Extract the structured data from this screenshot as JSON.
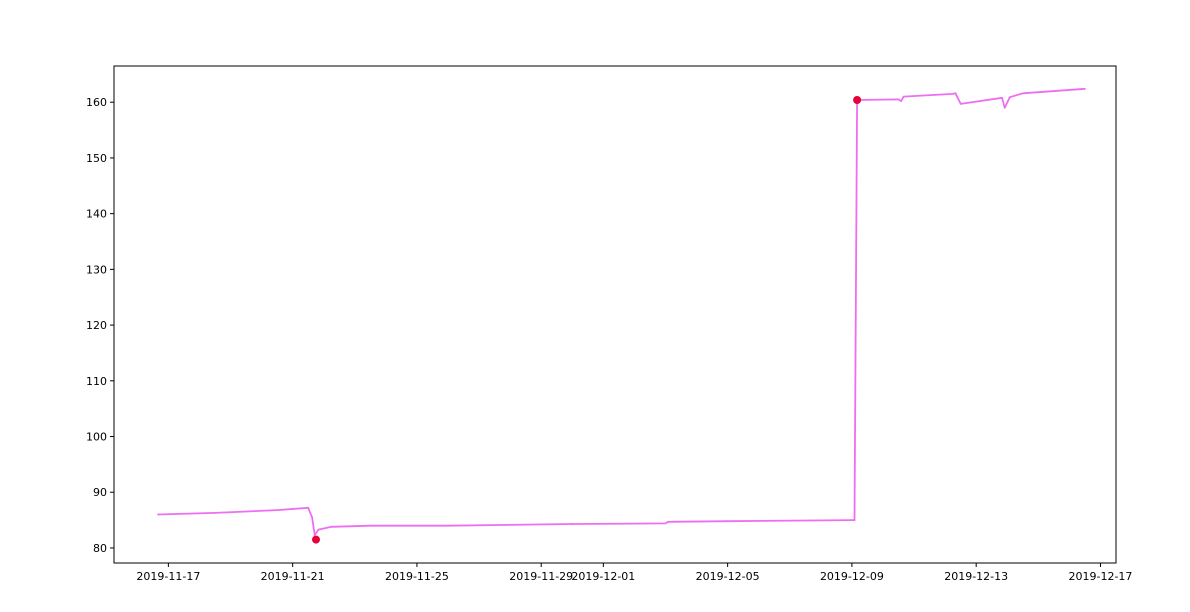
{
  "chart_data": {
    "type": "line",
    "title": "",
    "xlabel": "",
    "ylabel": "",
    "x_axis_kind": "date",
    "xlim": [
      "2019-11-15T06:00",
      "2019-12-17T12:00"
    ],
    "ylim": [
      77.3,
      166.5
    ],
    "x_ticks": [
      "2019-11-17",
      "2019-11-21",
      "2019-11-25",
      "2019-11-29",
      "2019-12-01",
      "2019-12-05",
      "2019-12-09",
      "2019-12-13",
      "2019-12-17"
    ],
    "y_ticks": [
      80,
      90,
      100,
      110,
      120,
      130,
      140,
      150,
      160
    ],
    "grid": false,
    "legend": "none",
    "series": [
      {
        "color": "#ee6ef2",
        "points": [
          {
            "x": "2019-11-16T16:00",
            "y": 86.0
          },
          {
            "x": "2019-11-18T12:00",
            "y": 86.3
          },
          {
            "x": "2019-11-20T12:00",
            "y": 86.8
          },
          {
            "x": "2019-11-21T12:00",
            "y": 87.2
          },
          {
            "x": "2019-11-21T15:00",
            "y": 85.5
          },
          {
            "x": "2019-11-21T17:00",
            "y": 82.3
          },
          {
            "x": "2019-11-21T20:00",
            "y": 83.3
          },
          {
            "x": "2019-11-22T06:00",
            "y": 83.8
          },
          {
            "x": "2019-11-23T12:00",
            "y": 84.0
          },
          {
            "x": "2019-11-26T00:00",
            "y": 84.0
          },
          {
            "x": "2019-11-30T00:00",
            "y": 84.3
          },
          {
            "x": "2019-12-03T00:00",
            "y": 84.4
          },
          {
            "x": "2019-12-03T02:00",
            "y": 84.7
          },
          {
            "x": "2019-12-05T00:00",
            "y": 84.8
          },
          {
            "x": "2019-12-09T00:00",
            "y": 85.0
          },
          {
            "x": "2019-12-09T02:00",
            "y": 85.0
          },
          {
            "x": "2019-12-09T04:00",
            "y": 160.4
          },
          {
            "x": "2019-12-10T12:00",
            "y": 160.5
          },
          {
            "x": "2019-12-10T14:00",
            "y": 160.2
          },
          {
            "x": "2019-12-10T16:00",
            "y": 161.0
          },
          {
            "x": "2019-12-12T06:00",
            "y": 161.5
          },
          {
            "x": "2019-12-12T08:00",
            "y": 161.6
          },
          {
            "x": "2019-12-12T12:00",
            "y": 159.7
          },
          {
            "x": "2019-12-13T20:00",
            "y": 160.8
          },
          {
            "x": "2019-12-13T22:00",
            "y": 159.0
          },
          {
            "x": "2019-12-14T02:00",
            "y": 160.9
          },
          {
            "x": "2019-12-14T12:00",
            "y": 161.6
          },
          {
            "x": "2019-12-16T12:00",
            "y": 162.4
          }
        ]
      }
    ],
    "markers": [
      {
        "x": "2019-11-21T18:00",
        "y": 81.5,
        "color": "#e8003a"
      },
      {
        "x": "2019-12-09T04:00",
        "y": 160.4,
        "color": "#e8003a"
      }
    ]
  }
}
